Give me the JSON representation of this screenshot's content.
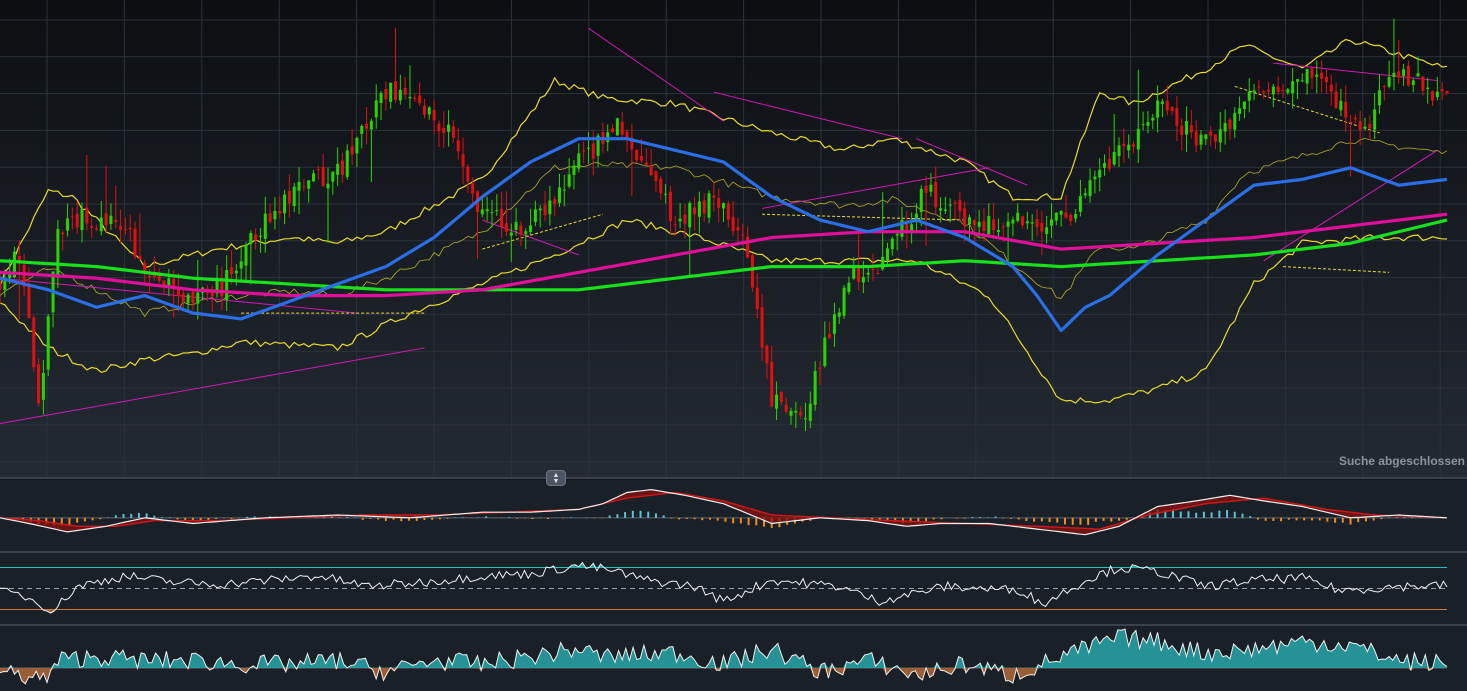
{
  "status": {
    "text": "Suche abgeschlossen"
  },
  "colors": {
    "bull": "#27d400",
    "bear": "#e01010",
    "bollinger": "#e8dc28",
    "sma_fast": "#2a6fe8",
    "sma_mid": "#e0109a",
    "sma_slow": "#18e01c",
    "trend_magenta": "#d21bb8",
    "trend_yellow": "#e8dc28",
    "hist_pos": "#5bc2d6",
    "hist_neg": "#f08c1c",
    "macd_line": "#f0f0f0",
    "signal_line": "#d01818",
    "osc_line": "#f0f0f0",
    "osc_pos_fill": "#2aa7a8",
    "osc_neg_fill": "#b06a38",
    "osc_hi": "#19c9b8",
    "osc_lo": "#d07a3a"
  },
  "icons": {
    "pane_resize": "updown-arrows-icon"
  },
  "chart_data": [
    {
      "name": "price-pane",
      "type": "candlestick",
      "overlays": [
        "bollinger-bands",
        "sma-fast",
        "sma-mid",
        "sma-slow",
        "trendlines"
      ],
      "grid": true,
      "anchors": {
        "close": [
          [
            0,
            63
          ],
          [
            3,
            67
          ],
          [
            5,
            61
          ],
          [
            8,
            41
          ],
          [
            12,
            71
          ],
          [
            18,
            74
          ],
          [
            26,
            71
          ],
          [
            32,
            63
          ],
          [
            38,
            60
          ],
          [
            46,
            61
          ],
          [
            50,
            67
          ],
          [
            57,
            75
          ],
          [
            64,
            79
          ],
          [
            70,
            81
          ],
          [
            80,
            95
          ],
          [
            87,
            93
          ],
          [
            94,
            88
          ],
          [
            100,
            74
          ],
          [
            108,
            71
          ],
          [
            114,
            75
          ],
          [
            120,
            83
          ],
          [
            128,
            89
          ],
          [
            140,
            73
          ],
          [
            148,
            77
          ],
          [
            154,
            70
          ],
          [
            160,
            42
          ],
          [
            166,
            38
          ],
          [
            176,
            64
          ],
          [
            181,
            64
          ],
          [
            192,
            78
          ],
          [
            198,
            74
          ],
          [
            206,
            72
          ],
          [
            220,
            73
          ],
          [
            230,
            82
          ],
          [
            240,
            92
          ],
          [
            250,
            86
          ],
          [
            260,
            95
          ],
          [
            272,
            99
          ],
          [
            282,
            88
          ],
          [
            290,
            99
          ],
          [
            296,
            95
          ],
          [
            300,
            96
          ]
        ],
        "sma_fast": [
          [
            0,
            63
          ],
          [
            10,
            61
          ],
          [
            20,
            58
          ],
          [
            30,
            60
          ],
          [
            40,
            57
          ],
          [
            50,
            56
          ],
          [
            60,
            59
          ],
          [
            70,
            62
          ],
          [
            80,
            65
          ],
          [
            90,
            70
          ],
          [
            100,
            77
          ],
          [
            110,
            83
          ],
          [
            120,
            87
          ],
          [
            130,
            87
          ],
          [
            140,
            85
          ],
          [
            150,
            83
          ],
          [
            160,
            77
          ],
          [
            170,
            73
          ],
          [
            180,
            71
          ],
          [
            190,
            73
          ],
          [
            200,
            70
          ],
          [
            210,
            65
          ],
          [
            215,
            60
          ],
          [
            220,
            54
          ],
          [
            225,
            58
          ],
          [
            230,
            60
          ],
          [
            240,
            67
          ],
          [
            250,
            73
          ],
          [
            260,
            79
          ],
          [
            270,
            80
          ],
          [
            280,
            82
          ],
          [
            290,
            79
          ],
          [
            300,
            80
          ]
        ],
        "sma_mid": [
          [
            0,
            64
          ],
          [
            20,
            63
          ],
          [
            40,
            61
          ],
          [
            60,
            60
          ],
          [
            80,
            60
          ],
          [
            100,
            61
          ],
          [
            120,
            64
          ],
          [
            140,
            67
          ],
          [
            160,
            70
          ],
          [
            180,
            71
          ],
          [
            200,
            71
          ],
          [
            220,
            68
          ],
          [
            240,
            69
          ],
          [
            260,
            70
          ],
          [
            280,
            72
          ],
          [
            300,
            74
          ]
        ],
        "sma_slow": [
          [
            0,
            66
          ],
          [
            20,
            65
          ],
          [
            40,
            63
          ],
          [
            60,
            62
          ],
          [
            80,
            61
          ],
          [
            100,
            61
          ],
          [
            120,
            61
          ],
          [
            140,
            63
          ],
          [
            160,
            65
          ],
          [
            180,
            65
          ],
          [
            200,
            66
          ],
          [
            220,
            65
          ],
          [
            240,
            66
          ],
          [
            260,
            67
          ],
          [
            280,
            69
          ],
          [
            300,
            73
          ]
        ],
        "bb_upper": [
          [
            0,
            62
          ],
          [
            10,
            78
          ],
          [
            15,
            77
          ],
          [
            30,
            65
          ],
          [
            45,
            68
          ],
          [
            60,
            70
          ],
          [
            70,
            69
          ],
          [
            80,
            71
          ],
          [
            100,
            80
          ],
          [
            115,
            97
          ],
          [
            125,
            94
          ],
          [
            140,
            93
          ],
          [
            160,
            88
          ],
          [
            175,
            85
          ],
          [
            185,
            87
          ],
          [
            200,
            83
          ],
          [
            210,
            77
          ],
          [
            220,
            77
          ],
          [
            228,
            95
          ],
          [
            235,
            93
          ],
          [
            250,
            99
          ],
          [
            258,
            103
          ],
          [
            270,
            99
          ],
          [
            280,
            104
          ],
          [
            300,
            99
          ]
        ],
        "bb_lower": [
          [
            0,
            59
          ],
          [
            10,
            51
          ],
          [
            20,
            47
          ],
          [
            30,
            49
          ],
          [
            40,
            50
          ],
          [
            50,
            52
          ],
          [
            70,
            51
          ],
          [
            85,
            57
          ],
          [
            100,
            62
          ],
          [
            115,
            67
          ],
          [
            130,
            73
          ],
          [
            145,
            70
          ],
          [
            160,
            66
          ],
          [
            170,
            66
          ],
          [
            190,
            66
          ],
          [
            205,
            60
          ],
          [
            220,
            42
          ],
          [
            230,
            42
          ],
          [
            240,
            44
          ],
          [
            250,
            47
          ],
          [
            260,
            62
          ],
          [
            270,
            69
          ],
          [
            285,
            70
          ],
          [
            300,
            70
          ]
        ],
        "trendlines_magenta": [
          [
            [
              0,
              38
            ],
            [
              88,
              51
            ]
          ],
          [
            [
              0,
              63
            ],
            [
              74,
              57
            ]
          ],
          [
            [
              122,
              106
            ],
            [
              150,
              90
            ]
          ],
          [
            [
              148,
              95
            ],
            [
              187,
              87
            ]
          ],
          [
            [
              190,
              87
            ],
            [
              213,
              79
            ]
          ],
          [
            [
              100,
              73
            ],
            [
              120,
              67
            ]
          ],
          [
            [
              158,
              75
            ],
            [
              205,
              82
            ]
          ],
          [
            [
              264,
              100
            ],
            [
              298,
              97
            ]
          ],
          [
            [
              262,
              66
            ],
            [
              298,
              85
            ]
          ]
        ],
        "trendlines_yellow_dashed": [
          [
            [
              50,
              57
            ],
            [
              88,
              57
            ]
          ],
          [
            [
              100,
              68
            ],
            [
              125,
              74
            ]
          ],
          [
            [
              158,
              74
            ],
            [
              200,
              73
            ]
          ],
          [
            [
              256,
              96
            ],
            [
              286,
              88
            ]
          ],
          [
            [
              266,
              65
            ],
            [
              288,
              64
            ]
          ]
        ]
      },
      "y_range": [
        30,
        110
      ]
    },
    {
      "name": "macd-pane",
      "type": "macd",
      "series": [
        "macd",
        "signal",
        "histogram"
      ],
      "anchors": {
        "macd": [
          [
            0,
            0
          ],
          [
            6,
            -2
          ],
          [
            14,
            -5
          ],
          [
            22,
            -3
          ],
          [
            30,
            0
          ],
          [
            40,
            -2
          ],
          [
            55,
            0
          ],
          [
            70,
            1
          ],
          [
            85,
            0
          ],
          [
            100,
            2
          ],
          [
            110,
            2
          ],
          [
            120,
            3
          ],
          [
            125,
            5
          ],
          [
            130,
            9
          ],
          [
            135,
            10
          ],
          [
            142,
            8
          ],
          [
            150,
            5
          ],
          [
            160,
            -2
          ],
          [
            170,
            0
          ],
          [
            180,
            -1
          ],
          [
            188,
            -3
          ],
          [
            195,
            -2
          ],
          [
            205,
            -2
          ],
          [
            215,
            -4
          ],
          [
            225,
            -6
          ],
          [
            232,
            -3
          ],
          [
            240,
            4
          ],
          [
            248,
            6
          ],
          [
            255,
            8
          ],
          [
            262,
            6
          ],
          [
            270,
            4
          ],
          [
            280,
            0
          ],
          [
            290,
            1
          ],
          [
            300,
            0
          ]
        ],
        "signal": [
          [
            0,
            0
          ],
          [
            8,
            -1
          ],
          [
            16,
            -3
          ],
          [
            24,
            -3
          ],
          [
            32,
            -1
          ],
          [
            45,
            -1
          ],
          [
            60,
            0
          ],
          [
            75,
            1
          ],
          [
            90,
            1
          ],
          [
            105,
            2
          ],
          [
            120,
            3
          ],
          [
            130,
            7
          ],
          [
            140,
            9
          ],
          [
            150,
            6
          ],
          [
            160,
            1
          ],
          [
            172,
            0
          ],
          [
            185,
            -1
          ],
          [
            200,
            -2
          ],
          [
            215,
            -3
          ],
          [
            228,
            -4
          ],
          [
            238,
            1
          ],
          [
            250,
            5
          ],
          [
            262,
            7
          ],
          [
            275,
            3
          ],
          [
            285,
            1
          ],
          [
            300,
            0
          ]
        ]
      },
      "y_range": [
        -10,
        12
      ]
    },
    {
      "name": "rsi-pane",
      "type": "oscillator",
      "levels": {
        "upper": 70,
        "middle": 50,
        "lower": 30
      },
      "anchors": [
        [
          0,
          47
        ],
        [
          5,
          43
        ],
        [
          11,
          29
        ],
        [
          16,
          52
        ],
        [
          26,
          62
        ],
        [
          36,
          56
        ],
        [
          46,
          54
        ],
        [
          56,
          58
        ],
        [
          66,
          62
        ],
        [
          76,
          52
        ],
        [
          88,
          56
        ],
        [
          100,
          62
        ],
        [
          110,
          64
        ],
        [
          120,
          72
        ],
        [
          126,
          68
        ],
        [
          134,
          58
        ],
        [
          144,
          52
        ],
        [
          150,
          38
        ],
        [
          160,
          58
        ],
        [
          174,
          52
        ],
        [
          182,
          38
        ],
        [
          196,
          52
        ],
        [
          212,
          48
        ],
        [
          216,
          35
        ],
        [
          226,
          60
        ],
        [
          232,
          70
        ],
        [
          240,
          66
        ],
        [
          250,
          52
        ],
        [
          260,
          58
        ],
        [
          270,
          60
        ],
        [
          278,
          48
        ],
        [
          290,
          52
        ],
        [
          300,
          53
        ]
      ],
      "y_range": [
        20,
        80
      ]
    },
    {
      "name": "momentum-pane",
      "type": "oscillator",
      "levels": {
        "zero": 0
      },
      "anchors": [
        [
          0,
          -1
        ],
        [
          10,
          -3
        ],
        [
          12,
          2
        ],
        [
          20,
          3
        ],
        [
          30,
          2
        ],
        [
          40,
          2
        ],
        [
          50,
          1
        ],
        [
          60,
          1
        ],
        [
          70,
          2
        ],
        [
          80,
          -1
        ],
        [
          90,
          2
        ],
        [
          100,
          1
        ],
        [
          110,
          3
        ],
        [
          120,
          5
        ],
        [
          125,
          3
        ],
        [
          140,
          4
        ],
        [
          150,
          1
        ],
        [
          160,
          5
        ],
        [
          170,
          -1
        ],
        [
          180,
          2
        ],
        [
          190,
          -2
        ],
        [
          200,
          1
        ],
        [
          210,
          -2
        ],
        [
          220,
          3
        ],
        [
          232,
          8
        ],
        [
          240,
          7
        ],
        [
          250,
          4
        ],
        [
          260,
          5
        ],
        [
          270,
          7
        ],
        [
          280,
          6
        ],
        [
          290,
          2
        ],
        [
          300,
          1
        ]
      ],
      "y_range": [
        -5,
        10
      ]
    }
  ]
}
